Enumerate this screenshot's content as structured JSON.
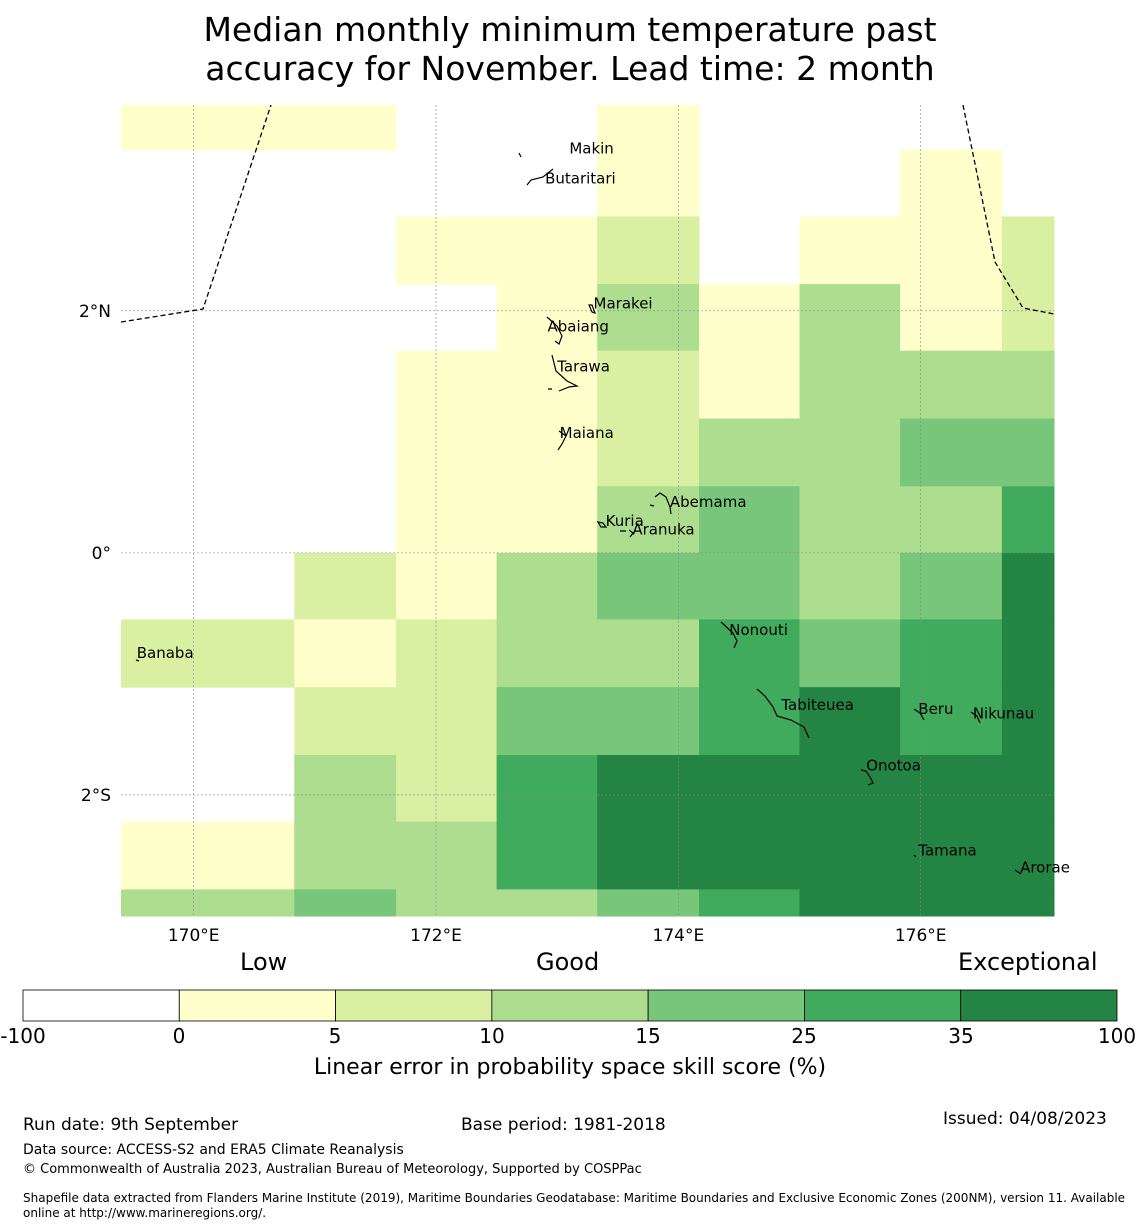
{
  "title_line1": "Median monthly minimum temperature past",
  "title_line2": "accuracy for November. Lead time: 2 month",
  "map": {
    "lon_range": [
      169.4,
      177.1
    ],
    "lat_range": [
      -3.0,
      3.7
    ],
    "x_ticks": [
      {
        "lon": 170,
        "label": "170°E"
      },
      {
        "lon": 172,
        "label": "172°E"
      },
      {
        "lon": 174,
        "label": "174°E"
      },
      {
        "lon": 176,
        "label": "176°E"
      }
    ],
    "y_ticks": [
      {
        "lat": 2,
        "label": "2°N"
      },
      {
        "lat": 0,
        "label": "0°"
      },
      {
        "lat": -2,
        "label": "2°S"
      }
    ],
    "grid": true,
    "cell_columns_lon_edges": [
      169.4,
      170.83,
      171.67,
      172.5,
      173.33,
      174.17,
      175.0,
      175.83,
      176.67,
      177.1
    ],
    "cell_rows_lat_edges": [
      3.7,
      3.33,
      2.78,
      2.22,
      1.67,
      1.11,
      0.55,
      0.0,
      -0.55,
      -1.11,
      -1.67,
      -2.22,
      -2.78,
      -3.0
    ],
    "skill_classes": [
      [
        1,
        1,
        0,
        0,
        1,
        0,
        0,
        0,
        0
      ],
      [
        0,
        0,
        0,
        0,
        1,
        0,
        0,
        1,
        0
      ],
      [
        0,
        0,
        1,
        1,
        2,
        0,
        1,
        1,
        2
      ],
      [
        0,
        0,
        0,
        1,
        3,
        1,
        3,
        1,
        2
      ],
      [
        0,
        0,
        1,
        1,
        2,
        1,
        3,
        3,
        3
      ],
      [
        0,
        0,
        1,
        1,
        2,
        3,
        3,
        4,
        4
      ],
      [
        0,
        0,
        1,
        1,
        3,
        4,
        3,
        3,
        5
      ],
      [
        0,
        2,
        1,
        3,
        4,
        4,
        3,
        4,
        6
      ],
      [
        2,
        1,
        2,
        3,
        3,
        5,
        4,
        5,
        6
      ],
      [
        0,
        2,
        2,
        4,
        4,
        5,
        6,
        5,
        6
      ],
      [
        0,
        3,
        2,
        5,
        6,
        6,
        6,
        6,
        6
      ],
      [
        1,
        3,
        3,
        5,
        6,
        6,
        6,
        6,
        6
      ],
      [
        3,
        4,
        3,
        3,
        4,
        5,
        6,
        6,
        6
      ]
    ],
    "islands": [
      {
        "name": "Makin",
        "lon": 173.1,
        "lat": 3.3
      },
      {
        "name": "Butaritari",
        "lon": 172.9,
        "lat": 3.05
      },
      {
        "name": "Marakei",
        "lon": 173.3,
        "lat": 2.02
      },
      {
        "name": "Abaiang",
        "lon": 172.92,
        "lat": 1.83
      },
      {
        "name": "Tarawa",
        "lon": 173.0,
        "lat": 1.5
      },
      {
        "name": "Maiana",
        "lon": 173.02,
        "lat": 0.95
      },
      {
        "name": "Abemama",
        "lon": 173.93,
        "lat": 0.38
      },
      {
        "name": "Kuria",
        "lon": 173.4,
        "lat": 0.22
      },
      {
        "name": "Aranuka",
        "lon": 173.62,
        "lat": 0.15
      },
      {
        "name": "Nonouti",
        "lon": 174.42,
        "lat": -0.68
      },
      {
        "name": "Banaba",
        "lon": 169.53,
        "lat": -0.87
      },
      {
        "name": "Tabiteuea",
        "lon": 174.85,
        "lat": -1.3
      },
      {
        "name": "Beru",
        "lon": 175.98,
        "lat": -1.33
      },
      {
        "name": "Nikunau",
        "lon": 176.43,
        "lat": -1.37
      },
      {
        "name": "Onotoa",
        "lon": 175.55,
        "lat": -1.8
      },
      {
        "name": "Tamana",
        "lon": 175.98,
        "lat": -2.5
      },
      {
        "name": "Arorae",
        "lon": 176.82,
        "lat": -2.64
      }
    ]
  },
  "colorbar": {
    "head_low": "Low",
    "head_good": "Good",
    "head_exceptional": "Exceptional",
    "bins": [
      {
        "from": "-100",
        "to": "0",
        "color": "#ffffff"
      },
      {
        "from": "0",
        "to": "5",
        "color": "#ffffcc"
      },
      {
        "from": "5",
        "to": "10",
        "color": "#d9f0a3"
      },
      {
        "from": "10",
        "to": "15",
        "color": "#addd8e"
      },
      {
        "from": "15",
        "to": "25",
        "color": "#78c679"
      },
      {
        "from": "25",
        "to": "35",
        "color": "#41ab5d"
      },
      {
        "from": "35",
        "to": "100",
        "color": "#238443"
      }
    ],
    "tick_labels": [
      "-100",
      "0",
      "5",
      "10",
      "15",
      "25",
      "35",
      "100"
    ],
    "label": "Linear error in probability space skill score (%)"
  },
  "footer": {
    "run_date": "Run date: 9th September",
    "base_period": "Base period: 1981-2018",
    "issued": "Issued: 04/08/2023",
    "data_source": "Data source: ACCESS-S2 and ERA5 Climate Reanalysis",
    "copyright": "© Commonwealth of Australia 2023, Australian Bureau of Meteorology, Supported by COSPPac",
    "shapefile_line1": "Shapefile data extracted from Flanders Marine Institute (2019), Maritime Boundaries Geodatabase: Maritime Boundaries and Exclusive Economic Zones (200NM), version 11. Available",
    "shapefile_line2": "online at http://www.marineregions.org/."
  }
}
